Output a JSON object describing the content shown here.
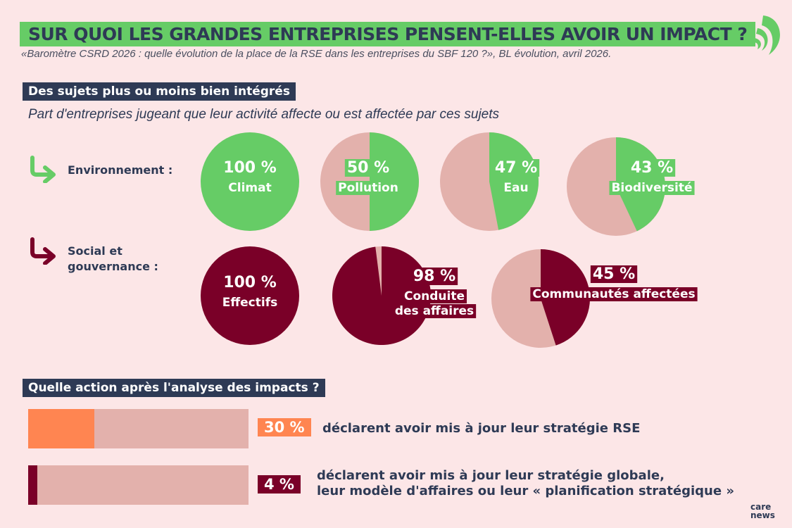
{
  "header": {
    "title": "SUR QUOI LES GRANDES ENTREPRISES PENSENT-ELLES AVOIR UN IMPACT ?",
    "source": "«Baromètre CSRD 2026 : quelle évolution de la place de la RSE dans les entreprises du SBF 120 ?», BL évolution, avril 2026."
  },
  "section1": {
    "heading": "Des sujets plus ou moins bien intégrés",
    "subtitle": "Part d'entreprises jugeant que leur activité affecte ou est affectée par ces sujets",
    "row_env": "Environnement :",
    "row_soc_1": "Social et",
    "row_soc_2": "gouvernance :"
  },
  "section2": {
    "heading": "Quelle action après l'analyse des impacts ?"
  },
  "colors": {
    "background": "#fce6e7",
    "green": "#66cc66",
    "navy": "#2e3a55",
    "maroon": "#7a0028",
    "remainder": "#e3b1ac",
    "orange": "#ff8551"
  },
  "chart_data": [
    {
      "type": "pie",
      "group": "Environnement",
      "series": [
        {
          "label": "Climat",
          "value": 100,
          "value_label": "100 %"
        },
        {
          "label": "Pollution",
          "value": 50,
          "value_label": "50 %"
        },
        {
          "label": "Eau",
          "value": 47,
          "value_label": "47 %"
        },
        {
          "label": "Biodiversité",
          "value": 43,
          "value_label": "43 %"
        }
      ]
    },
    {
      "type": "pie",
      "group": "Social et gouvernance",
      "series": [
        {
          "label": "Effectifs",
          "value": 100,
          "value_label": "100 %"
        },
        {
          "label": "Conduite des affaires",
          "value": 98,
          "value_label": "98 %"
        },
        {
          "label": "Communautés affectées",
          "value": 45,
          "value_label": "45 %"
        }
      ]
    },
    {
      "type": "bar",
      "orientation": "horizontal",
      "xlim": [
        0,
        100
      ],
      "series": [
        {
          "value": 30,
          "value_label": "30 %",
          "label": "déclarent avoir mis à jour leur stratégie RSE"
        },
        {
          "value": 4,
          "value_label": "4 %",
          "label_1": "déclarent avoir mis à jour leur stratégie globale,",
          "label_2": "leur modèle d'affaires ou leur « planification stratégique »"
        }
      ]
    }
  ],
  "footer": {
    "logo_1": "care",
    "logo_2": "news"
  }
}
